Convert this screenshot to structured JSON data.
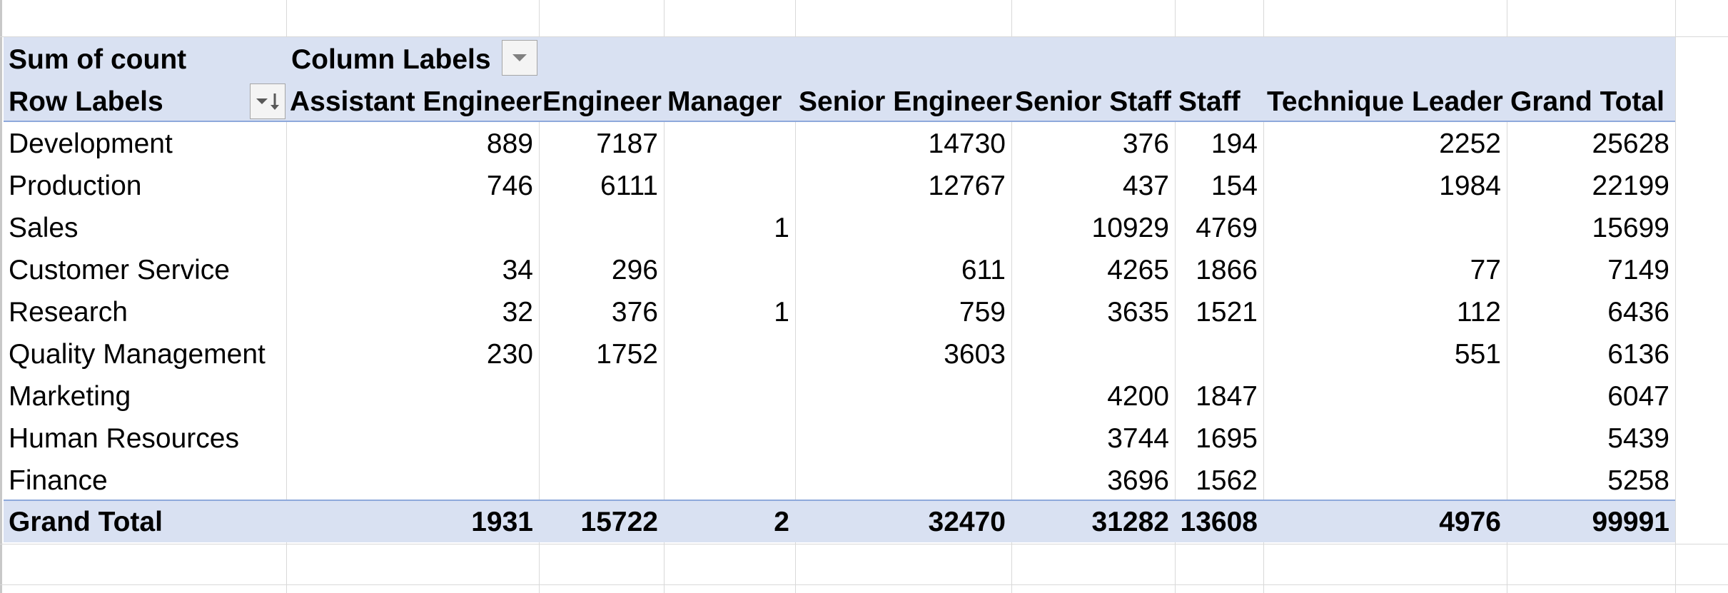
{
  "pivot": {
    "value_field_label": "Sum of count",
    "column_labels_caption": "Column Labels",
    "row_labels_caption": "Row Labels",
    "columns": [
      "Assistant Engineer",
      "Engineer",
      "Manager",
      "Senior Engineer",
      "Senior Staff",
      "Staff",
      "Technique Leader",
      "Grand Total"
    ],
    "rows": [
      {
        "label": "Development",
        "values": [
          "889",
          "7187",
          "",
          "14730",
          "376",
          "194",
          "2252",
          "25628"
        ]
      },
      {
        "label": "Production",
        "values": [
          "746",
          "6111",
          "",
          "12767",
          "437",
          "154",
          "1984",
          "22199"
        ]
      },
      {
        "label": "Sales",
        "values": [
          "",
          "",
          "1",
          "",
          "10929",
          "4769",
          "",
          "15699"
        ]
      },
      {
        "label": "Customer Service",
        "values": [
          "34",
          "296",
          "",
          "611",
          "4265",
          "1866",
          "77",
          "7149"
        ]
      },
      {
        "label": "Research",
        "values": [
          "32",
          "376",
          "1",
          "759",
          "3635",
          "1521",
          "112",
          "6436"
        ]
      },
      {
        "label": "Quality Management",
        "values": [
          "230",
          "1752",
          "",
          "3603",
          "",
          "",
          "551",
          "6136"
        ]
      },
      {
        "label": "Marketing",
        "values": [
          "",
          "",
          "",
          "",
          "4200",
          "1847",
          "",
          "6047"
        ]
      },
      {
        "label": "Human Resources",
        "values": [
          "",
          "",
          "",
          "",
          "3744",
          "1695",
          "",
          "5439"
        ]
      },
      {
        "label": "Finance",
        "values": [
          "",
          "",
          "",
          "",
          "3696",
          "1562",
          "",
          "5258"
        ]
      }
    ],
    "grand_total": {
      "label": "Grand Total",
      "values": [
        "1931",
        "15722",
        "2",
        "32470",
        "31282",
        "13608",
        "4976",
        "99991"
      ]
    }
  },
  "icons": {
    "column_filter": "filter-dropdown-icon",
    "row_sort": "sort-descending-filter-icon"
  },
  "colors": {
    "header_band": "#d9e1f2",
    "band_rule": "#8ea9db",
    "gridline": "#d9d9d9"
  }
}
